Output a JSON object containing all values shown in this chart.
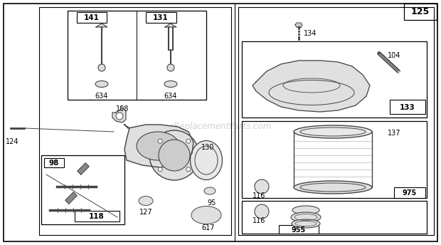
{
  "bg_color": "#ffffff",
  "page_number": "125",
  "watermark": "eReplacementParts.com",
  "font_size": 7,
  "gray": "#444444"
}
